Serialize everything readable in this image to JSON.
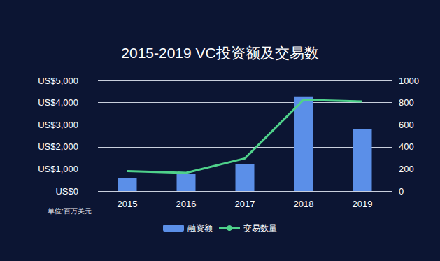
{
  "chart_data": {
    "type": "bar",
    "title": "2015-2019 VC投资额及交易数",
    "annotations": [
      "单位:百万美元"
    ],
    "categories": [
      "2015",
      "2016",
      "2017",
      "2018",
      "2019"
    ],
    "series": [
      {
        "name": "融资额",
        "type": "bar",
        "color": "#5b8fe8",
        "values": [
          600,
          780,
          1230,
          4280,
          2800
        ]
      },
      {
        "name": "交易数量",
        "type": "line",
        "color": "#4fd18b",
        "axis": "y2",
        "values": [
          180,
          165,
          295,
          825,
          810
        ]
      }
    ],
    "ylim": [
      0,
      5000
    ],
    "yticks": [
      {
        "value": 0,
        "label": "US$0"
      },
      {
        "value": 1000,
        "label": "US$1,000"
      },
      {
        "value": 2000,
        "label": "US$2,000"
      },
      {
        "value": 3000,
        "label": "US$3,000"
      },
      {
        "value": 4000,
        "label": "US$4,000"
      },
      {
        "value": 5000,
        "label": "US$5,000"
      }
    ],
    "y2lim": [
      0,
      1000
    ],
    "y2ticks": [
      0,
      200,
      400,
      600,
      800,
      1000
    ],
    "grid": true,
    "legend": "bottom"
  }
}
